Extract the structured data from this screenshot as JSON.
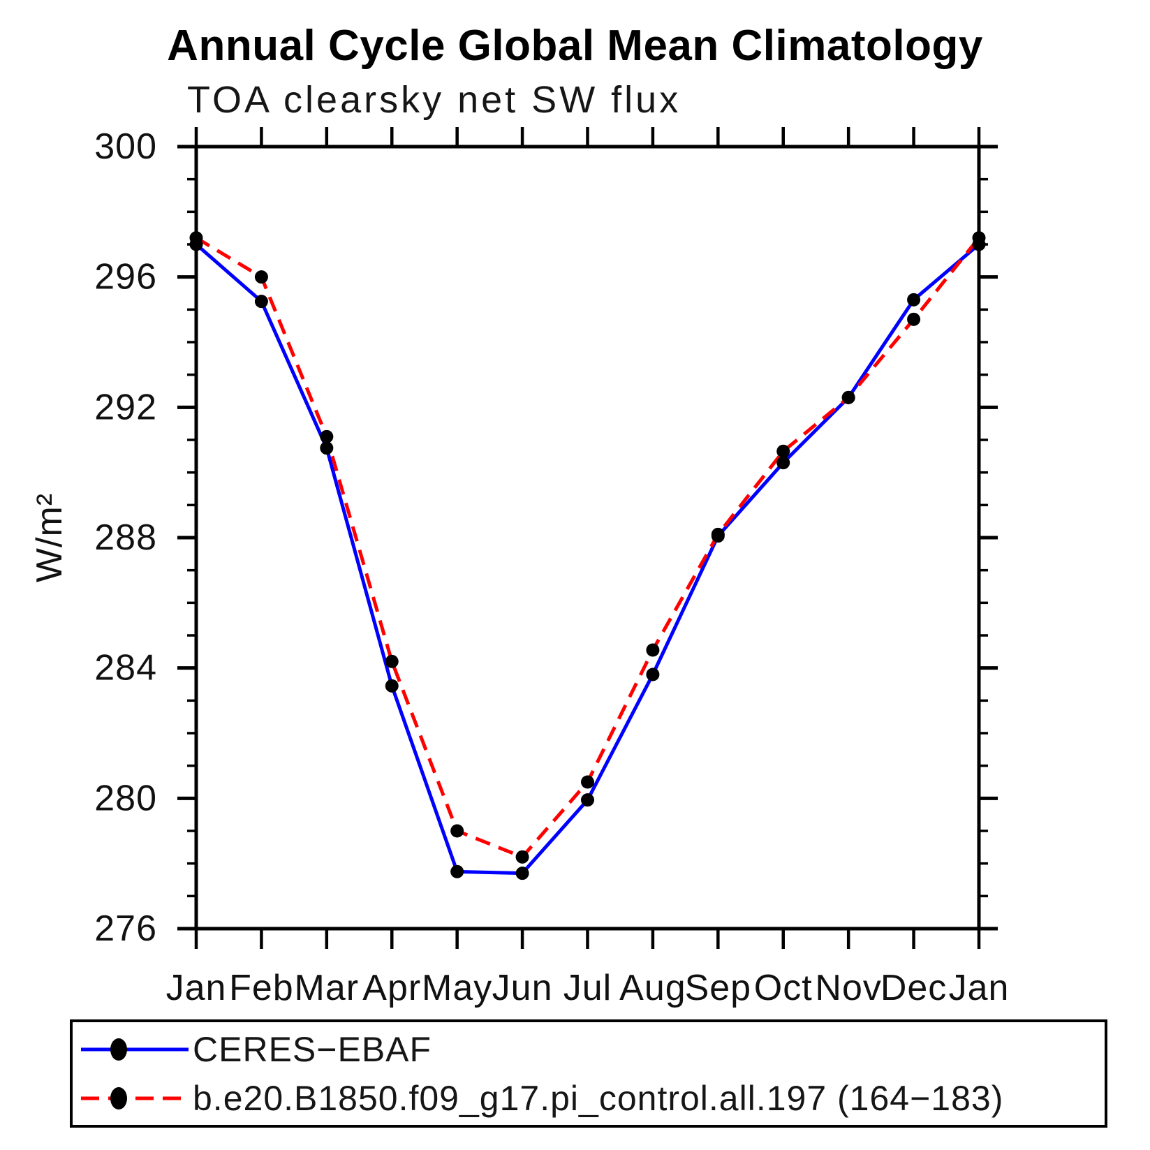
{
  "chart": {
    "title": "Annual Cycle Global Mean Climatology",
    "subtitle": "TOA clearsky net SW flux"
  },
  "chart_data": {
    "type": "line",
    "title": "Annual Cycle Global Mean Climatology",
    "subtitle": "TOA clearsky net SW flux",
    "xlabel": "",
    "ylabel": "W/m²",
    "categories": [
      "Jan",
      "Feb",
      "Mar",
      "Apr",
      "May",
      "Jun",
      "Jul",
      "Aug",
      "Sep",
      "Oct",
      "Nov",
      "Dec",
      "Jan"
    ],
    "ylim": [
      276,
      300
    ],
    "ytick_major": [
      276,
      280,
      284,
      288,
      292,
      296,
      300
    ],
    "ytick_minor_step": 1,
    "grid": false,
    "legend_position": "bottom",
    "marker": "filled-circle",
    "marker_color": "#000000",
    "series": [
      {
        "name": "CERES−EBAF",
        "color": "#0000ff",
        "style": "solid",
        "values": [
          297.0,
          295.25,
          290.75,
          283.45,
          277.75,
          277.7,
          279.95,
          283.8,
          288.05,
          290.3,
          292.3,
          295.3,
          297.0
        ]
      },
      {
        "name": "b.e20.B1850.f09_g17.pi_control.all.197 (164−183)",
        "color": "#ff0000",
        "style": "dashed",
        "values": [
          297.2,
          296.0,
          291.1,
          284.2,
          279.0,
          278.2,
          280.5,
          284.55,
          288.1,
          290.65,
          292.3,
          294.7,
          297.2
        ]
      }
    ]
  }
}
